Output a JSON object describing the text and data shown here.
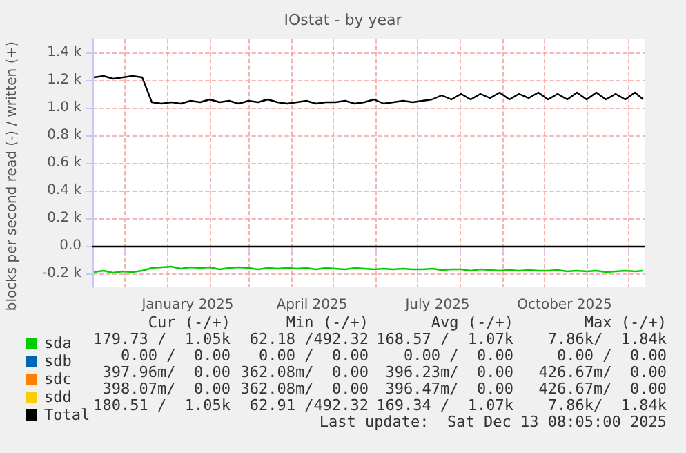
{
  "chart_data": {
    "type": "line",
    "title": "IOstat - by year",
    "ylabel": "blocks per second read (-) / written (+)",
    "x": [
      "2024-11-09",
      "2024-11-16",
      "2024-11-23",
      "2024-11-30",
      "2024-12-07",
      "2024-12-14",
      "2024-12-21",
      "2024-12-28",
      "2025-01-04",
      "2025-01-11",
      "2025-01-18",
      "2025-01-25",
      "2025-02-01",
      "2025-02-08",
      "2025-02-15",
      "2025-02-22",
      "2025-03-01",
      "2025-03-08",
      "2025-03-15",
      "2025-03-22",
      "2025-03-29",
      "2025-04-05",
      "2025-04-12",
      "2025-04-19",
      "2025-04-26",
      "2025-05-03",
      "2025-05-10",
      "2025-05-17",
      "2025-05-24",
      "2025-05-31",
      "2025-06-07",
      "2025-06-14",
      "2025-06-21",
      "2025-06-28",
      "2025-07-05",
      "2025-07-12",
      "2025-07-19",
      "2025-07-26",
      "2025-08-02",
      "2025-08-09",
      "2025-08-16",
      "2025-08-23",
      "2025-08-30",
      "2025-09-06",
      "2025-09-13",
      "2025-09-20",
      "2025-09-27",
      "2025-10-04",
      "2025-10-11",
      "2025-10-18",
      "2025-10-25",
      "2025-11-01",
      "2025-11-08",
      "2025-11-15",
      "2025-11-22",
      "2025-11-29",
      "2025-12-06",
      "2025-12-12"
    ],
    "series": [
      {
        "name": "sda",
        "color": "#00cc00",
        "values": [
          -190,
          -180,
          -195,
          -185,
          -190,
          -180,
          -160,
          -155,
          -150,
          -165,
          -155,
          -160,
          -155,
          -170,
          -160,
          -155,
          -160,
          -170,
          -160,
          -165,
          -160,
          -165,
          -160,
          -170,
          -160,
          -165,
          -170,
          -160,
          -165,
          -170,
          -165,
          -170,
          -165,
          -170,
          -170,
          -165,
          -175,
          -170,
          -170,
          -180,
          -170,
          -175,
          -180,
          -175,
          -180,
          -175,
          -180,
          -180,
          -175,
          -185,
          -180,
          -185,
          -180,
          -190,
          -185,
          -180,
          -185,
          -180
        ]
      },
      {
        "name": "sdb",
        "color": "#0066b3",
        "values": [
          null,
          null,
          null,
          null,
          null,
          null,
          null,
          null,
          null,
          null,
          null,
          null,
          null,
          null,
          null,
          null,
          null,
          null,
          null,
          null,
          null,
          null,
          null,
          null,
          null,
          null,
          null,
          null,
          null,
          null,
          null,
          null,
          null,
          null,
          null,
          null,
          null,
          null,
          null,
          null,
          null,
          null,
          null,
          null,
          null,
          null,
          null,
          null,
          null,
          null,
          null,
          null,
          null,
          null,
          null,
          null,
          null,
          null
        ]
      },
      {
        "name": "sdc",
        "color": "#ff8000",
        "values": [
          null,
          null,
          null,
          null,
          null,
          null,
          null,
          null,
          null,
          null,
          null,
          null,
          null,
          null,
          null,
          null,
          null,
          null,
          null,
          null,
          null,
          null,
          null,
          null,
          null,
          null,
          null,
          null,
          null,
          null,
          null,
          null,
          null,
          null,
          null,
          null,
          null,
          null,
          null,
          null,
          null,
          null,
          null,
          null,
          null,
          null,
          null,
          null,
          null,
          null,
          null,
          null,
          null,
          null,
          null,
          null,
          null,
          null
        ]
      },
      {
        "name": "sdd",
        "color": "#ffcc00",
        "values": [
          null,
          null,
          null,
          null,
          null,
          null,
          null,
          null,
          null,
          null,
          null,
          null,
          null,
          null,
          null,
          null,
          null,
          null,
          null,
          null,
          null,
          null,
          null,
          null,
          null,
          null,
          null,
          null,
          null,
          null,
          null,
          null,
          null,
          null,
          null,
          null,
          null,
          null,
          null,
          null,
          null,
          null,
          null,
          null,
          null,
          null,
          null,
          null,
          null,
          null,
          null,
          null,
          null,
          null,
          null,
          null,
          null,
          null
        ]
      },
      {
        "name": "Total",
        "color": "#000000",
        "values": [
          1220,
          1230,
          1210,
          1220,
          1230,
          1220,
          1040,
          1030,
          1040,
          1030,
          1050,
          1040,
          1060,
          1040,
          1050,
          1030,
          1050,
          1040,
          1060,
          1040,
          1030,
          1040,
          1050,
          1030,
          1040,
          1040,
          1050,
          1030,
          1040,
          1060,
          1030,
          1040,
          1050,
          1040,
          1050,
          1060,
          1090,
          1060,
          1100,
          1060,
          1100,
          1070,
          1110,
          1060,
          1100,
          1070,
          1110,
          1060,
          1100,
          1060,
          1110,
          1060,
          1110,
          1060,
          1100,
          1060,
          1110,
          1060
        ]
      }
    ],
    "xlim": [
      "2024-11-08",
      "2025-12-13"
    ],
    "xticks": [
      {
        "value": "2024-12-01",
        "label": null
      },
      {
        "value": "2025-01-01",
        "label": null
      },
      {
        "value": "2025-01-16",
        "label": "January 2025"
      },
      {
        "value": "2025-02-01",
        "label": null
      },
      {
        "value": "2025-03-01",
        "label": null
      },
      {
        "value": "2025-04-01",
        "label": null
      },
      {
        "value": "2025-04-16",
        "label": "April 2025"
      },
      {
        "value": "2025-05-01",
        "label": null
      },
      {
        "value": "2025-06-01",
        "label": null
      },
      {
        "value": "2025-07-01",
        "label": null
      },
      {
        "value": "2025-07-16",
        "label": "July 2025"
      },
      {
        "value": "2025-08-01",
        "label": null
      },
      {
        "value": "2025-09-01",
        "label": null
      },
      {
        "value": "2025-10-01",
        "label": null
      },
      {
        "value": "2025-10-16",
        "label": "October 2025"
      },
      {
        "value": "2025-11-01",
        "label": null
      },
      {
        "value": "2025-12-01",
        "label": null
      }
    ],
    "ylim": [
      -300,
      1500
    ],
    "yticks": [
      {
        "value": -200,
        "label": "-0.2 k"
      },
      {
        "value": 0,
        "label": "0.0"
      },
      {
        "value": 200,
        "label": "0.2 k"
      },
      {
        "value": 400,
        "label": "0.4 k"
      },
      {
        "value": 600,
        "label": "0.6 k"
      },
      {
        "value": 800,
        "label": "0.8 k"
      },
      {
        "value": 1000,
        "label": "1.0 k"
      },
      {
        "value": 1200,
        "label": "1.2 k"
      },
      {
        "value": 1400,
        "label": "1.4 k"
      }
    ],
    "ref_lines": [
      {
        "axis": "y",
        "value": 0,
        "label": null,
        "color": "#000000"
      }
    ],
    "grid": true,
    "legend": "bottom left",
    "marker": "none",
    "line_style": "solid",
    "annotations": [
      "Cur (-/+)",
      "Min (-/+)",
      "Avg (-/+)",
      "Max (-/+)",
      "179.73 /  1.05k",
      "62.18 /492.32",
      "168.57 /  1.07k",
      "7.86k/  1.84k",
      "0.00 /  0.00",
      "0.00 /  0.00",
      "0.00 /  0.00",
      "0.00 /  0.00",
      "397.96m/  0.00",
      "362.08m/  0.00",
      "396.23m/  0.00",
      "426.67m/  0.00",
      "398.07m/  0.00",
      "362.08m/  0.00",
      "396.47m/  0.00",
      "426.67m/  0.00",
      "180.51 /  1.05k",
      "62.91 /492.32",
      "169.34 /  1.07k",
      "7.86k/  1.84k",
      "Last update:  Sat Dec 13 08:05:00 2025"
    ]
  }
}
